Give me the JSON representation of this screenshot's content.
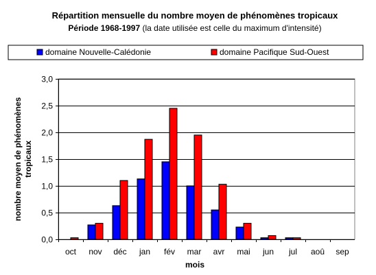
{
  "chart_data": {
    "type": "bar",
    "title": "Répartition mensuelle du nombre moyen de phénomènes tropicaux",
    "subtitle_bold": "Période 1968-1997",
    "subtitle_rest": " (la date utilisée est celle du maximum d'intensité)",
    "xlabel": "mois",
    "ylabel_line1": "nombre moyen de phénomènes",
    "ylabel_line2": "tropicaux",
    "categories": [
      "oct",
      "nov",
      "déc",
      "jan",
      "fév",
      "mar",
      "avr",
      "mai",
      "jun",
      "jul",
      "aoû",
      "sep"
    ],
    "ylim": [
      0,
      3.0
    ],
    "yticks": [
      "0,0",
      "0,5",
      "1,0",
      "1,5",
      "2,0",
      "2,5",
      "3,0"
    ],
    "grid": true,
    "legend_position": "top",
    "series": [
      {
        "name": "domaine Nouvelle-Calédonie",
        "color": "#0000ff",
        "values": [
          0.0,
          0.27,
          0.63,
          1.13,
          1.45,
          1.0,
          0.55,
          0.23,
          0.03,
          0.03,
          0.0,
          0.0
        ]
      },
      {
        "name": "domaine Pacifique Sud-Ouest",
        "color": "#ff0000",
        "values": [
          0.03,
          0.3,
          1.1,
          1.87,
          2.45,
          1.95,
          1.03,
          0.3,
          0.07,
          0.03,
          0.0,
          0.0
        ]
      }
    ]
  }
}
